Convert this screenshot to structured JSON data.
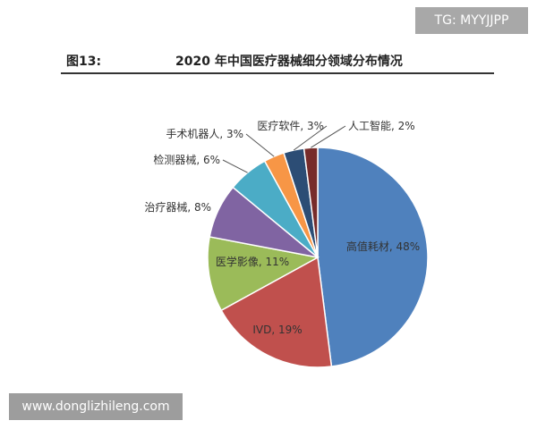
{
  "watermark_top": "TG: MYYJJPP",
  "watermark_bottom": "www.donglizhileng.com",
  "figure": {
    "label": "图13:",
    "title": "2020 年中国医疗器械细分领域分布情况"
  },
  "chart_data": {
    "type": "pie",
    "title": "2020 年中国医疗器械细分领域分布情况",
    "slices": [
      {
        "name": "高值耗材",
        "value": 48,
        "label": "高值耗材, 48%",
        "color": "#4f81bd"
      },
      {
        "name": "IVD",
        "value": 19,
        "label": "IVD, 19%",
        "color": "#c0504d"
      },
      {
        "name": "医学影像",
        "value": 11,
        "label": "医学影像, 11%",
        "color": "#9bbb59"
      },
      {
        "name": "治疗器械",
        "value": 8,
        "label": "治疗器械, 8%",
        "color": "#8064a2"
      },
      {
        "name": "检测器械",
        "value": 6,
        "label": "检测器械, 6%",
        "color": "#4bacc6"
      },
      {
        "name": "手术机器人",
        "value": 3,
        "label": "手术机器人, 3%",
        "color": "#f79646"
      },
      {
        "name": "医疗软件",
        "value": 3,
        "label": "医疗软件, 3%",
        "color": "#2c4d75"
      },
      {
        "name": "人工智能",
        "value": 2,
        "label": "人工智能, 2%",
        "color": "#772c2a"
      }
    ]
  }
}
